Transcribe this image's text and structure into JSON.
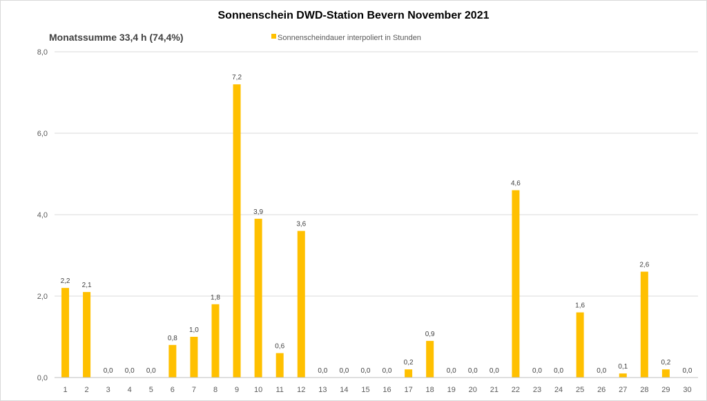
{
  "chart_data": {
    "type": "bar",
    "title": "Sonnenschein  DWD-Station  Bevern November 2021",
    "subtitle": "Monatssumme 33,4 h (74,4%)",
    "xlabel": "",
    "ylabel": "",
    "categories": [
      "1",
      "2",
      "3",
      "4",
      "5",
      "6",
      "7",
      "8",
      "9",
      "10",
      "11",
      "12",
      "13",
      "14",
      "15",
      "16",
      "17",
      "18",
      "19",
      "20",
      "21",
      "22",
      "23",
      "24",
      "25",
      "26",
      "27",
      "28",
      "29",
      "30"
    ],
    "series": [
      {
        "name": "Sonnenscheindauer interpoliert in Stunden",
        "values": [
          2.2,
          2.1,
          0.0,
          0.0,
          0.0,
          0.8,
          1.0,
          1.8,
          7.2,
          3.9,
          0.6,
          3.6,
          0.0,
          0.0,
          0.0,
          0.0,
          0.2,
          0.9,
          0.0,
          0.0,
          0.0,
          4.6,
          0.0,
          0.0,
          1.6,
          0.0,
          0.1,
          2.6,
          0.2,
          0.0
        ],
        "labels": [
          "2,2",
          "2,1",
          "0,0",
          "0,0",
          "0,0",
          "0,8",
          "1,0",
          "1,8",
          "7,2",
          "3,9",
          "0,6",
          "3,6",
          "0,0",
          "0,0",
          "0,0",
          "0,0",
          "0,2",
          "0,9",
          "0,0",
          "0,0",
          "0,0",
          "4,6",
          "0,0",
          "0,0",
          "1,6",
          "0,0",
          "0,1",
          "2,6",
          "0,2",
          "0,0"
        ],
        "color": "#FFC000"
      }
    ],
    "ylim": [
      0,
      8
    ],
    "yticks": [
      0,
      2,
      4,
      6,
      8
    ],
    "ytick_labels": [
      "0,0",
      "2,0",
      "4,0",
      "6,0",
      "8,0"
    ],
    "grid": true,
    "grid_color": "#d9d9d9",
    "legend_position": "top"
  }
}
